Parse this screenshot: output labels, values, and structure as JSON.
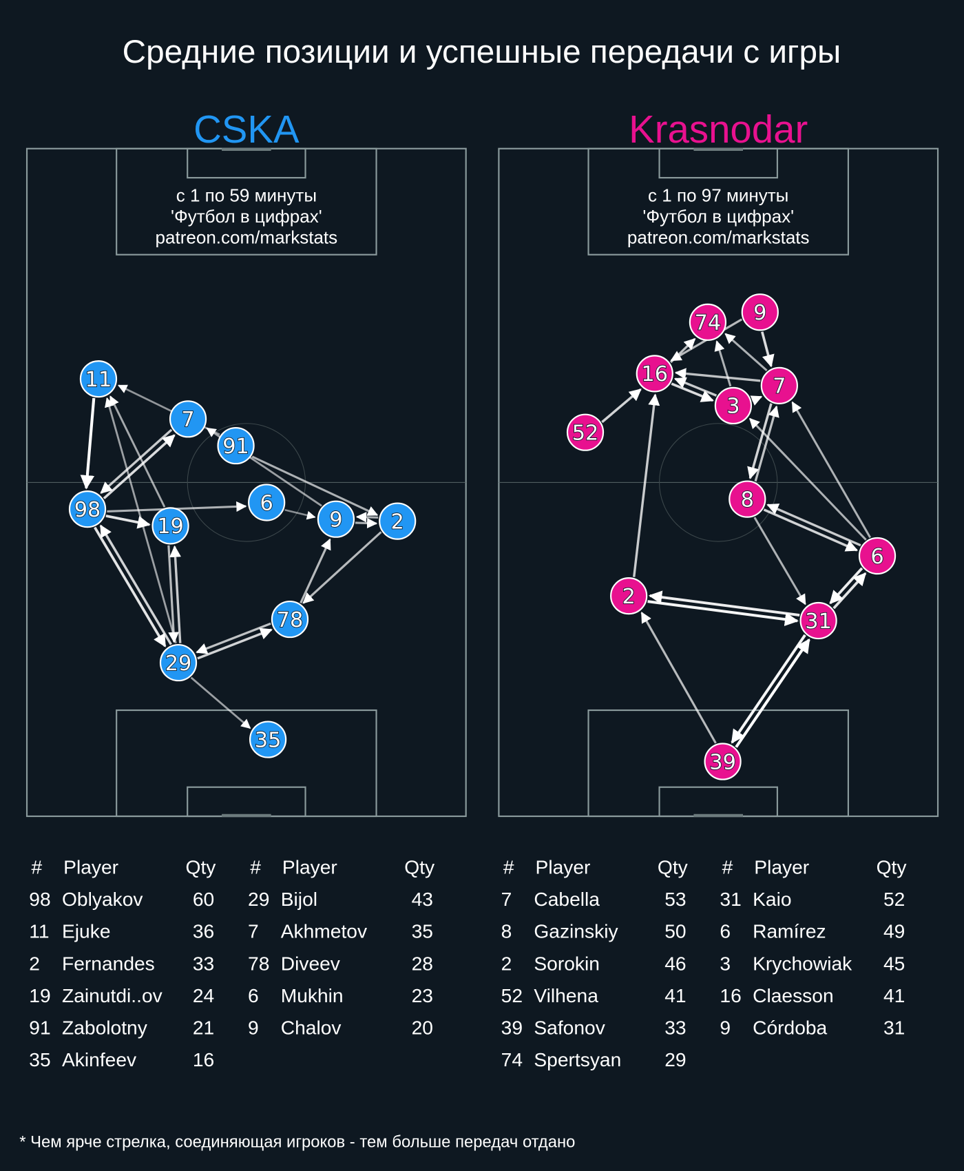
{
  "title": "Средние позиции и успешные передачи с игры",
  "footnote": "* Чем ярче стрелка, соединяющая игроков - тем больше передач отдано",
  "chart_data": [
    {
      "type": "scatter",
      "team": "CSKA",
      "color": "#2196f3",
      "info": [
        "с 1 по 59 минуты",
        "'Футбол в цифрах'",
        "patreon.com/markstats"
      ],
      "xlim": [
        0,
        100
      ],
      "ylim": [
        0,
        100
      ],
      "players": [
        {
          "num": "11",
          "x": 16.3,
          "y": 65.5
        },
        {
          "num": "7",
          "x": 36.7,
          "y": 59.5
        },
        {
          "num": "91",
          "x": 47.6,
          "y": 55.5
        },
        {
          "num": "98",
          "x": 13.8,
          "y": 46.0
        },
        {
          "num": "6",
          "x": 54.6,
          "y": 47.0
        },
        {
          "num": "19",
          "x": 32.7,
          "y": 43.5
        },
        {
          "num": "9",
          "x": 70.4,
          "y": 44.5
        },
        {
          "num": "2",
          "x": 84.4,
          "y": 44.2
        },
        {
          "num": "78",
          "x": 59.9,
          "y": 29.5
        },
        {
          "num": "29",
          "x": 34.5,
          "y": 23.0
        },
        {
          "num": "35",
          "x": 54.9,
          "y": 11.5
        }
      ],
      "passes": [
        {
          "from": "11",
          "to": "98",
          "intensity": 1.0
        },
        {
          "from": "98",
          "to": "7",
          "intensity": 0.8
        },
        {
          "from": "7",
          "to": "98",
          "intensity": 0.7
        },
        {
          "from": "98",
          "to": "19",
          "intensity": 0.85
        },
        {
          "from": "98",
          "to": "29",
          "intensity": 0.85
        },
        {
          "from": "29",
          "to": "98",
          "intensity": 0.75
        },
        {
          "from": "98",
          "to": "6",
          "intensity": 0.55
        },
        {
          "from": "19",
          "to": "11",
          "intensity": 0.5
        },
        {
          "from": "29",
          "to": "11",
          "intensity": 0.45
        },
        {
          "from": "29",
          "to": "19",
          "intensity": 0.7
        },
        {
          "from": "19",
          "to": "29",
          "intensity": 0.6
        },
        {
          "from": "29",
          "to": "78",
          "intensity": 0.75
        },
        {
          "from": "78",
          "to": "29",
          "intensity": 0.65
        },
        {
          "from": "29",
          "to": "35",
          "intensity": 0.45
        },
        {
          "from": "2",
          "to": "78",
          "intensity": 0.6
        },
        {
          "from": "78",
          "to": "9",
          "intensity": 0.6
        },
        {
          "from": "9",
          "to": "2",
          "intensity": 0.55
        },
        {
          "from": "2",
          "to": "9",
          "intensity": 0.55
        },
        {
          "from": "91",
          "to": "2",
          "intensity": 0.55
        },
        {
          "from": "91",
          "to": "11",
          "intensity": 0.4
        },
        {
          "from": "9",
          "to": "7",
          "intensity": 0.45
        },
        {
          "from": "6",
          "to": "9",
          "intensity": 0.35
        }
      ],
      "table": {
        "headers": [
          "#",
          "Player",
          "Qty"
        ],
        "columns": [
          [
            {
              "num": "98",
              "name": "Oblyakov",
              "qty": "60"
            },
            {
              "num": "11",
              "name": "Ejuke",
              "qty": "36"
            },
            {
              "num": "2",
              "name": "Fernandes",
              "qty": "33"
            },
            {
              "num": "19",
              "name": "Zainutdi..ov",
              "qty": "24"
            },
            {
              "num": "91",
              "name": "Zabolotny",
              "qty": "21"
            },
            {
              "num": "35",
              "name": "Akinfeev",
              "qty": "16"
            }
          ],
          [
            {
              "num": "29",
              "name": "Bijol",
              "qty": "43"
            },
            {
              "num": "7",
              "name": "Akhmetov",
              "qty": "35"
            },
            {
              "num": "78",
              "name": "Diveev",
              "qty": "28"
            },
            {
              "num": "6",
              "name": "Mukhin",
              "qty": "23"
            },
            {
              "num": "9",
              "name": "Chalov",
              "qty": "20"
            }
          ]
        ]
      }
    },
    {
      "type": "scatter",
      "team": "Krasnodar",
      "color": "#e8118f",
      "info": [
        "с 1 по 97 минуты",
        "'Футбол в цифрах'",
        "patreon.com/markstats"
      ],
      "xlim": [
        0,
        100
      ],
      "ylim": [
        0,
        100
      ],
      "players": [
        {
          "num": "74",
          "x": 47.6,
          "y": 74.0
        },
        {
          "num": "9",
          "x": 59.5,
          "y": 75.5
        },
        {
          "num": "16",
          "x": 35.5,
          "y": 66.3
        },
        {
          "num": "7",
          "x": 63.9,
          "y": 64.5
        },
        {
          "num": "3",
          "x": 53.4,
          "y": 61.5
        },
        {
          "num": "52",
          "x": 19.7,
          "y": 57.5
        },
        {
          "num": "8",
          "x": 56.6,
          "y": 47.5
        },
        {
          "num": "6",
          "x": 86.2,
          "y": 39.0
        },
        {
          "num": "2",
          "x": 29.6,
          "y": 33.0
        },
        {
          "num": "31",
          "x": 72.8,
          "y": 29.3
        },
        {
          "num": "39",
          "x": 51.0,
          "y": 8.2
        }
      ],
      "passes": [
        {
          "from": "52",
          "to": "16",
          "intensity": 0.75
        },
        {
          "from": "16",
          "to": "74",
          "intensity": 0.65
        },
        {
          "from": "9",
          "to": "16",
          "intensity": 0.6
        },
        {
          "from": "9",
          "to": "7",
          "intensity": 0.8
        },
        {
          "from": "7",
          "to": "16",
          "intensity": 0.65
        },
        {
          "from": "16",
          "to": "3",
          "intensity": 0.8
        },
        {
          "from": "3",
          "to": "16",
          "intensity": 0.7
        },
        {
          "from": "3",
          "to": "74",
          "intensity": 0.55
        },
        {
          "from": "7",
          "to": "74",
          "intensity": 0.55
        },
        {
          "from": "3",
          "to": "7",
          "intensity": 0.6
        },
        {
          "from": "7",
          "to": "8",
          "intensity": 0.75
        },
        {
          "from": "8",
          "to": "7",
          "intensity": 0.65
        },
        {
          "from": "6",
          "to": "3",
          "intensity": 0.55
        },
        {
          "from": "6",
          "to": "7",
          "intensity": 0.55
        },
        {
          "from": "8",
          "to": "6",
          "intensity": 0.75
        },
        {
          "from": "6",
          "to": "8",
          "intensity": 0.7
        },
        {
          "from": "6",
          "to": "31",
          "intensity": 0.9
        },
        {
          "from": "31",
          "to": "6",
          "intensity": 0.85
        },
        {
          "from": "8",
          "to": "31",
          "intensity": 0.55
        },
        {
          "from": "2",
          "to": "31",
          "intensity": 0.95
        },
        {
          "from": "31",
          "to": "2",
          "intensity": 0.9
        },
        {
          "from": "2",
          "to": "16",
          "intensity": 0.7
        },
        {
          "from": "39",
          "to": "31",
          "intensity": 1.0
        },
        {
          "from": "31",
          "to": "39",
          "intensity": 0.95
        },
        {
          "from": "39",
          "to": "2",
          "intensity": 0.6
        }
      ],
      "table": {
        "headers": [
          "#",
          "Player",
          "Qty"
        ],
        "columns": [
          [
            {
              "num": "7",
              "name": "Cabella",
              "qty": "53"
            },
            {
              "num": "8",
              "name": "Gazinskiy",
              "qty": "50"
            },
            {
              "num": "2",
              "name": "Sorokin",
              "qty": "46"
            },
            {
              "num": "52",
              "name": "Vilhena",
              "qty": "41"
            },
            {
              "num": "39",
              "name": "Safonov",
              "qty": "33"
            },
            {
              "num": "74",
              "name": "Spertsyan",
              "qty": "29"
            }
          ],
          [
            {
              "num": "31",
              "name": "Kaio",
              "qty": "52"
            },
            {
              "num": "6",
              "name": "Ramírez",
              "qty": "49"
            },
            {
              "num": "3",
              "name": "Krychowiak",
              "qty": "45"
            },
            {
              "num": "16",
              "name": "Claesson",
              "qty": "41"
            },
            {
              "num": "9",
              "name": "Córdoba",
              "qty": "31"
            }
          ]
        ]
      }
    }
  ]
}
